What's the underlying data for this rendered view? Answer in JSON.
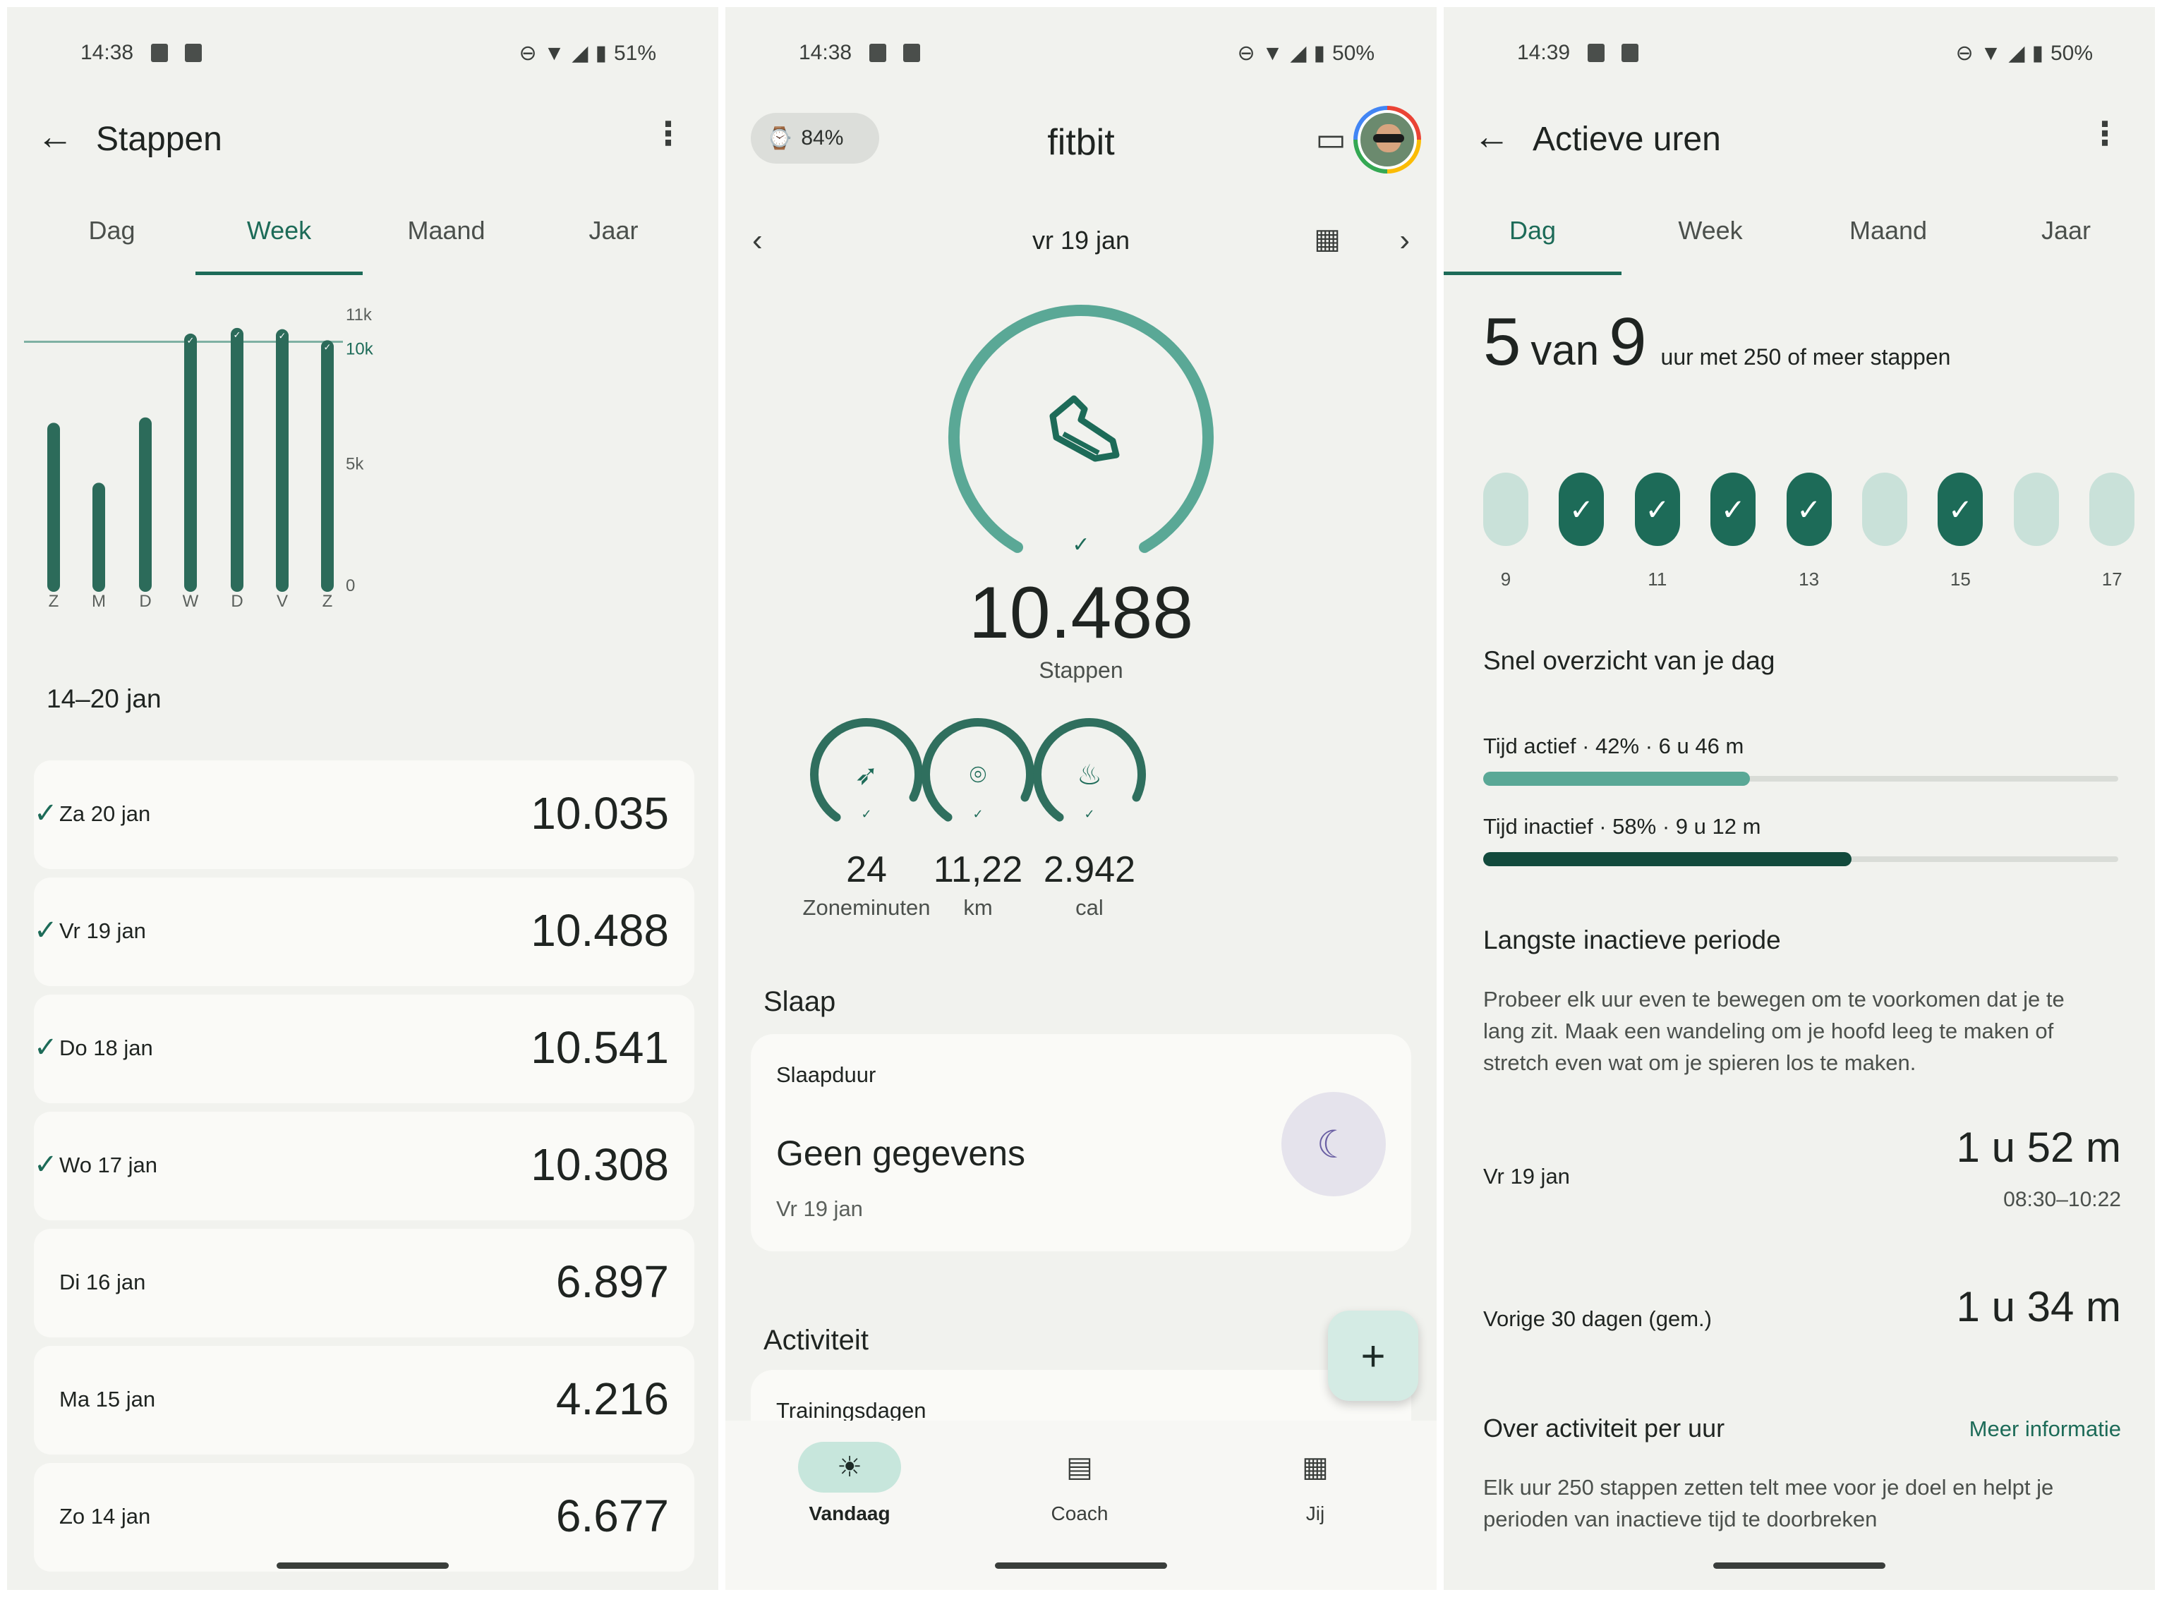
{
  "colors": {
    "accent": "#1d6b58",
    "ring": "#5aa896",
    "track_light": "#c9e1d9",
    "dark_fill": "#124a3c",
    "background": "#f1f2ee"
  },
  "screen1": {
    "status": {
      "time": "14:38",
      "battery": "51%"
    },
    "title": "Stappen",
    "tabs": [
      "Dag",
      "Week",
      "Maand",
      "Jaar"
    ],
    "active_tab": "Week",
    "range": "14–20 jan",
    "entries": [
      {
        "date": "Za 20 jan",
        "value": "10.035",
        "goal": true
      },
      {
        "date": "Vr 19 jan",
        "value": "10.488",
        "goal": true
      },
      {
        "date": "Do 18 jan",
        "value": "10.541",
        "goal": true
      },
      {
        "date": "Wo 17 jan",
        "value": "10.308",
        "goal": true
      },
      {
        "date": "Di 16 jan",
        "value": "6.897",
        "goal": false
      },
      {
        "date": "Ma 15 jan",
        "value": "4.216",
        "goal": false
      },
      {
        "date": "Zo 14 jan",
        "value": "6.677",
        "goal": false
      }
    ]
  },
  "chart_data": {
    "type": "bar",
    "categories": [
      "Z",
      "M",
      "D",
      "W",
      "D",
      "V",
      "Z"
    ],
    "values": [
      6677,
      4216,
      6897,
      10308,
      10541,
      10488,
      10035
    ],
    "goal_met": [
      false,
      false,
      false,
      true,
      true,
      true,
      true
    ],
    "goal": 10000,
    "ylim": [
      0,
      11000
    ],
    "ytick_labels": [
      "0",
      "5k",
      "10k",
      "11k"
    ],
    "yticks": [
      0,
      5000,
      10000,
      11000
    ],
    "goal_label": "10k",
    "title": "",
    "xlabel": "",
    "ylabel": ""
  },
  "screen2": {
    "status": {
      "time": "14:38",
      "battery": "50%"
    },
    "device_battery": "84%",
    "app_title": "fitbit",
    "date": "vr 19 jan",
    "steps": {
      "value": "10.488",
      "label": "Stappen",
      "progress": 1.0
    },
    "metrics": [
      {
        "value": "24",
        "label": "Zoneminuten",
        "icon": "zone-minutes-icon",
        "glyph": "➶",
        "progress": 0.9
      },
      {
        "value": "11,22",
        "label": "km",
        "icon": "location-pin-icon",
        "glyph": "⌾",
        "progress": 0.9
      },
      {
        "value": "2.942",
        "label": "cal",
        "icon": "flame-icon",
        "glyph": "♨",
        "progress": 0.9
      }
    ],
    "sleep": {
      "section": "Slaap",
      "title": "Slaapduur",
      "value": "Geen gegevens",
      "date": "Vr 19 jan"
    },
    "activity": {
      "section": "Activiteit",
      "card_title": "Trainingsdagen"
    },
    "nav": [
      {
        "label": "Vandaag",
        "icon": "sunrise-icon",
        "glyph": "☀"
      },
      {
        "label": "Coach",
        "icon": "clipboard-icon",
        "glyph": "▤"
      },
      {
        "label": "Jij",
        "icon": "grid-icon",
        "glyph": "▦"
      }
    ],
    "active_nav": "Vandaag"
  },
  "screen3": {
    "status": {
      "time": "14:39",
      "battery": "50%"
    },
    "title": "Actieve uren",
    "tabs": [
      "Dag",
      "Week",
      "Maand",
      "Jaar"
    ],
    "active_tab": "Dag",
    "summary": {
      "achieved": "5",
      "van": "van",
      "goal": "9",
      "suffix": "uur met 250 of meer stappen"
    },
    "hours": [
      {
        "hour": "9",
        "active": false,
        "label": "9"
      },
      {
        "hour": "10",
        "active": true,
        "label": ""
      },
      {
        "hour": "11",
        "active": true,
        "label": "11"
      },
      {
        "hour": "12",
        "active": true,
        "label": ""
      },
      {
        "hour": "13",
        "active": true,
        "label": "13"
      },
      {
        "hour": "14",
        "active": false,
        "label": ""
      },
      {
        "hour": "15",
        "active": true,
        "label": "15"
      },
      {
        "hour": "16",
        "active": false,
        "label": ""
      },
      {
        "hour": "17",
        "active": false,
        "label": "17"
      }
    ],
    "overview_title": "Snel overzicht van je dag",
    "active_time": {
      "label": "Tijd actief · 42% · 6 u 46 m",
      "fraction": 0.42
    },
    "inactive_time": {
      "label": "Tijd inactief · 58% · 9 u 12 m",
      "fraction": 0.58
    },
    "longest_title": "Langste inactieve periode",
    "longest_text": "Probeer elk uur even te bewegen om te voorkomen dat je te lang zit. Maak een wandeling om je hoofd leeg te maken of stretch even wat om je spieren los te maken.",
    "today": {
      "label": "Vr 19 jan",
      "value": "1 u 52 m",
      "range": "08:30–10:22"
    },
    "avg": {
      "label": "Vorige 30 dagen (gem.)",
      "value": "1 u 34 m"
    },
    "about_title": "Over activiteit per uur",
    "more_info": "Meer informatie",
    "about_text": "Elk uur 250 stappen zetten telt mee voor je doel en helpt je perioden van inactieve tijd te doorbreken"
  }
}
